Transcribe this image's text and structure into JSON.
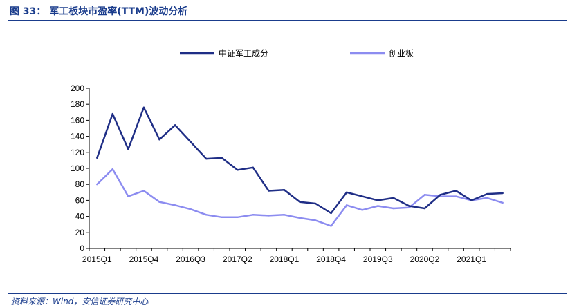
{
  "figure": {
    "title": "图 33： 军工板块市盈率(TTM)波动分析",
    "source": "资料来源：Wind，安信证券研究中心"
  },
  "chart_data": {
    "type": "line",
    "title": "",
    "xlabel": "",
    "ylabel": "",
    "ylim": [
      0,
      200
    ],
    "yticks": [
      0,
      20,
      40,
      60,
      80,
      100,
      120,
      140,
      160,
      180,
      200
    ],
    "grid": false,
    "legend_position": "top",
    "x": [
      "2015Q1",
      "2015Q2",
      "2015Q3",
      "2015Q4",
      "2016Q1",
      "2016Q2",
      "2016Q3",
      "2016Q4",
      "2017Q1",
      "2017Q2",
      "2017Q3",
      "2017Q4",
      "2018Q1",
      "2018Q2",
      "2018Q3",
      "2018Q4",
      "2019Q1",
      "2019Q2",
      "2019Q3",
      "2019Q4",
      "2020Q1",
      "2020Q2",
      "2020Q3",
      "2020Q4",
      "2021Q1",
      "2021Q2",
      "2021Q3"
    ],
    "xtick_labels": [
      "2015Q1",
      "2015Q4",
      "2016Q3",
      "2017Q2",
      "2018Q1",
      "2018Q4",
      "2019Q3",
      "2020Q2",
      "2021Q1"
    ],
    "series": [
      {
        "name": "中证军工成分",
        "color": "#1f2e86",
        "values": [
          113,
          168,
          124,
          176,
          136,
          154,
          133,
          112,
          113,
          98,
          101,
          72,
          73,
          58,
          56,
          44,
          70,
          65,
          60,
          63,
          53,
          50,
          67,
          72,
          60,
          68,
          69
        ]
      },
      {
        "name": "创业板",
        "color": "#8c8cf0",
        "values": [
          80,
          99,
          65,
          72,
          58,
          54,
          49,
          42,
          39,
          39,
          42,
          41,
          42,
          38,
          35,
          28,
          54,
          48,
          53,
          50,
          51,
          67,
          65,
          65,
          60,
          63,
          57
        ]
      }
    ]
  }
}
